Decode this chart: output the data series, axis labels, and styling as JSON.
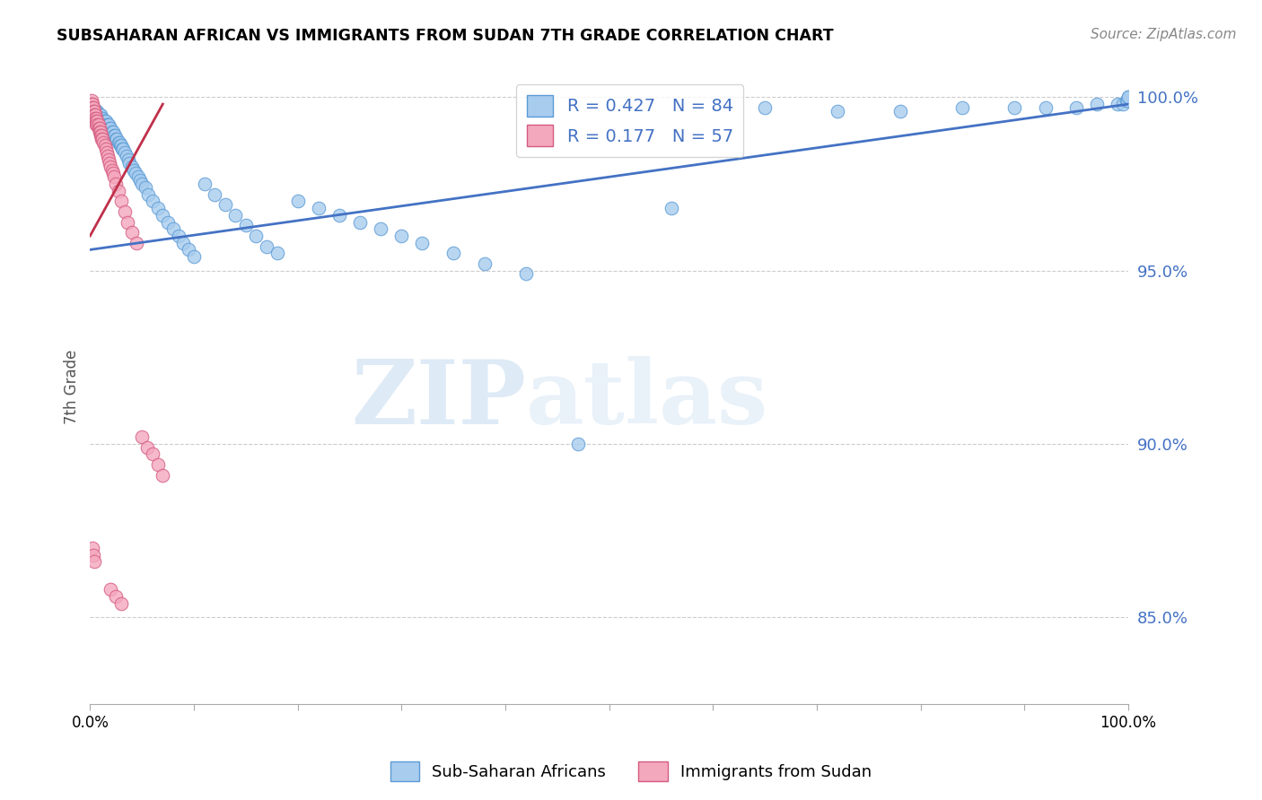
{
  "title": "SUBSAHARAN AFRICAN VS IMMIGRANTS FROM SUDAN 7TH GRADE CORRELATION CHART",
  "source": "Source: ZipAtlas.com",
  "ylabel": "7th Grade",
  "watermark_zip": "ZIP",
  "watermark_atlas": "atlas",
  "blue_label": "Sub-Saharan Africans",
  "pink_label": "Immigrants from Sudan",
  "blue_R": 0.427,
  "blue_N": 84,
  "pink_R": 0.177,
  "pink_N": 57,
  "blue_color": "#a8ccee",
  "pink_color": "#f4a8be",
  "blue_edge_color": "#5b9bd5",
  "pink_edge_color": "#d45b80",
  "blue_line_color": "#4472c4",
  "pink_line_color": "#c0304a",
  "tick_color": "#4472c4",
  "grid_color": "#cccccc",
  "xlim": [
    0.0,
    1.0
  ],
  "ylim": [
    0.825,
    1.008
  ],
  "yticks": [
    0.85,
    0.9,
    0.95,
    1.0
  ],
  "ytick_labels": [
    "85.0%",
    "90.0%",
    "95.0%",
    "100.0%"
  ],
  "xticks": [
    0.0,
    0.1,
    0.2,
    0.3,
    0.4,
    0.5,
    0.6,
    0.7,
    0.8,
    0.9,
    1.0
  ],
  "xtick_labels": [
    "0.0%",
    "",
    "",
    "",
    "",
    "",
    "",
    "",
    "",
    "",
    "100.0%"
  ],
  "blue_x": [
    0.003,
    0.005,
    0.006,
    0.007,
    0.008,
    0.009,
    0.01,
    0.011,
    0.012,
    0.013,
    0.014,
    0.015,
    0.016,
    0.017,
    0.018,
    0.019,
    0.02,
    0.021,
    0.022,
    0.023,
    0.024,
    0.025,
    0.026,
    0.027,
    0.028,
    0.029,
    0.03,
    0.031,
    0.032,
    0.033,
    0.035,
    0.037,
    0.038,
    0.04,
    0.042,
    0.044,
    0.046,
    0.048,
    0.05,
    0.053,
    0.056,
    0.06,
    0.065,
    0.07,
    0.075,
    0.08,
    0.085,
    0.09,
    0.095,
    0.1,
    0.11,
    0.12,
    0.13,
    0.14,
    0.15,
    0.16,
    0.17,
    0.18,
    0.2,
    0.22,
    0.24,
    0.26,
    0.28,
    0.3,
    0.32,
    0.35,
    0.38,
    0.42,
    0.47,
    0.56,
    0.65,
    0.72,
    0.78,
    0.84,
    0.89,
    0.92,
    0.95,
    0.97,
    0.99,
    0.995,
    0.998,
    0.999,
    1.0,
    1.0
  ],
  "blue_y": [
    0.997,
    0.996,
    0.996,
    0.996,
    0.995,
    0.995,
    0.995,
    0.994,
    0.994,
    0.993,
    0.993,
    0.993,
    0.992,
    0.992,
    0.992,
    0.991,
    0.991,
    0.99,
    0.99,
    0.989,
    0.989,
    0.988,
    0.988,
    0.987,
    0.987,
    0.986,
    0.986,
    0.985,
    0.985,
    0.984,
    0.983,
    0.982,
    0.981,
    0.98,
    0.979,
    0.978,
    0.977,
    0.976,
    0.975,
    0.974,
    0.972,
    0.97,
    0.968,
    0.966,
    0.964,
    0.962,
    0.96,
    0.958,
    0.956,
    0.954,
    0.975,
    0.972,
    0.969,
    0.966,
    0.963,
    0.96,
    0.957,
    0.955,
    0.97,
    0.968,
    0.966,
    0.964,
    0.962,
    0.96,
    0.958,
    0.955,
    0.952,
    0.949,
    0.9,
    0.968,
    0.997,
    0.996,
    0.996,
    0.997,
    0.997,
    0.997,
    0.997,
    0.998,
    0.998,
    0.998,
    0.999,
    0.999,
    1.0,
    1.0
  ],
  "pink_x": [
    0.001,
    0.001,
    0.002,
    0.002,
    0.002,
    0.003,
    0.003,
    0.003,
    0.004,
    0.004,
    0.004,
    0.005,
    0.005,
    0.005,
    0.006,
    0.006,
    0.006,
    0.007,
    0.007,
    0.008,
    0.008,
    0.009,
    0.009,
    0.01,
    0.01,
    0.011,
    0.011,
    0.012,
    0.013,
    0.014,
    0.015,
    0.016,
    0.017,
    0.018,
    0.019,
    0.02,
    0.021,
    0.022,
    0.023,
    0.025,
    0.027,
    0.03,
    0.033,
    0.036,
    0.04,
    0.045,
    0.05,
    0.055,
    0.06,
    0.065,
    0.07,
    0.002,
    0.003,
    0.004,
    0.02,
    0.025,
    0.03
  ],
  "pink_y": [
    0.999,
    0.998,
    0.998,
    0.997,
    0.996,
    0.997,
    0.996,
    0.995,
    0.996,
    0.995,
    0.994,
    0.995,
    0.994,
    0.993,
    0.994,
    0.993,
    0.992,
    0.993,
    0.992,
    0.992,
    0.991,
    0.991,
    0.99,
    0.99,
    0.989,
    0.989,
    0.988,
    0.988,
    0.987,
    0.986,
    0.985,
    0.984,
    0.983,
    0.982,
    0.981,
    0.98,
    0.979,
    0.978,
    0.977,
    0.975,
    0.973,
    0.97,
    0.967,
    0.964,
    0.961,
    0.958,
    0.902,
    0.899,
    0.897,
    0.894,
    0.891,
    0.87,
    0.868,
    0.866,
    0.858,
    0.856,
    0.854
  ],
  "blue_trend_x": [
    0.0,
    1.0
  ],
  "blue_trend_y": [
    0.956,
    0.998
  ],
  "pink_trend_x": [
    0.0,
    0.07
  ],
  "pink_trend_y": [
    0.96,
    0.998
  ]
}
